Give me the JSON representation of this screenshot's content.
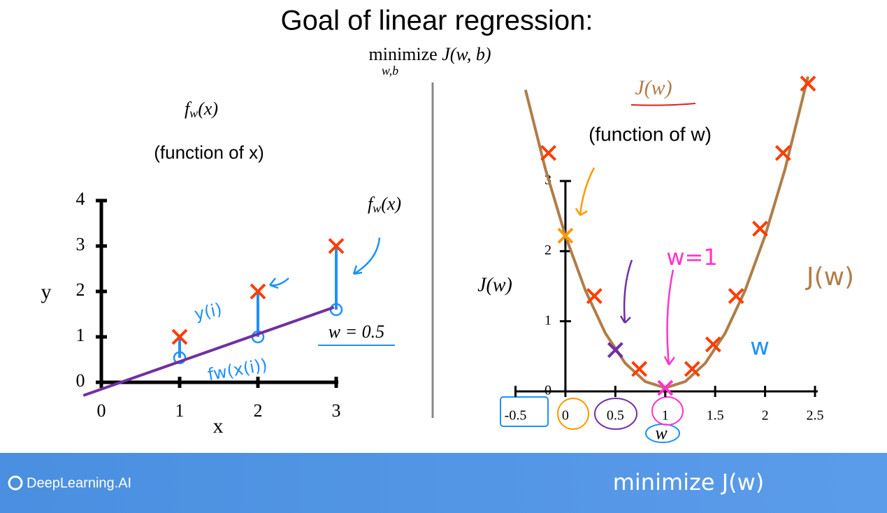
{
  "slide": {
    "title": "Goal of linear regression:",
    "objective": {
      "text": "minimize",
      "sub": "w,b",
      "func": "J(w, b)"
    }
  },
  "footer": {
    "brand": "DeepLearning.AI",
    "note": "minimize J(w)"
  },
  "chart_data": [
    {
      "type": "scatter",
      "title": {
        "f": "f",
        "sub": "w",
        "arg": "(x)"
      },
      "subtitle": "(function of x)",
      "x_label": "x",
      "y_label": "y",
      "xlim": [
        0,
        3
      ],
      "ylim": [
        0,
        4
      ],
      "xticks": [
        0,
        1,
        2,
        3
      ],
      "yticks": [
        0,
        1,
        2,
        3,
        4
      ],
      "series": [
        {
          "color": "#ff3d00",
          "marker": "x",
          "x": [
            1,
            2,
            3
          ],
          "values": [
            1,
            2,
            3
          ]
        },
        {
          "color": "#1e90ff",
          "marker": "o",
          "x": [
            1,
            2,
            3
          ],
          "values": [
            0.54,
            1.0,
            1.6
          ]
        },
        {
          "color": "#7030a0",
          "marker": "line",
          "x": [
            -0.23,
            2.97
          ],
          "values": [
            -0.29,
            1.65
          ]
        }
      ],
      "line_label": {
        "f": "f",
        "sub": "w",
        "arg": "(x)"
      },
      "param_label": "w = 0.5",
      "notes": [
        "y(i)",
        "fw(x(i))"
      ]
    },
    {
      "type": "line",
      "title": "J(w)",
      "subtitle": "(function of w)",
      "x_label": "w",
      "y_label": "J(w)",
      "xlim": [
        -0.5,
        2.5
      ],
      "ylim": [
        0,
        3
      ],
      "xticks": [
        -0.5,
        0,
        0.5,
        1,
        1.5,
        2,
        2.5
      ],
      "yticks": [
        0,
        1,
        2,
        3
      ],
      "series": [
        {
          "color": "#b07d48",
          "marker": "line",
          "x": [
            -0.4,
            -0.2,
            0,
            0.2,
            0.4,
            0.6,
            0.8,
            1,
            1.2,
            1.4,
            1.6,
            1.8,
            2,
            2.2,
            2.43
          ],
          "values": [
            4.3,
            3.17,
            2.22,
            1.44,
            0.83,
            0.4,
            0.14,
            0.05,
            0.14,
            0.4,
            0.83,
            1.44,
            2.22,
            3.17,
            4.49
          ]
        },
        {
          "color": "#ff3d00",
          "marker": "x",
          "x": [
            -0.17,
            0.29,
            0.74,
            1.27,
            1.48,
            1.71,
            1.95,
            2.18,
            2.43
          ],
          "values": [
            3.4,
            1.36,
            0.32,
            0.32,
            0.67,
            1.36,
            2.32,
            3.4,
            4.39
          ]
        },
        {
          "color": "#ff9900",
          "marker": "x",
          "x": [
            0
          ],
          "values": [
            2.22
          ]
        },
        {
          "color": "#7030a0",
          "marker": "x",
          "x": [
            0.5
          ],
          "values": [
            0.59
          ]
        },
        {
          "color": "#ff33cc",
          "marker": "x",
          "x": [
            1
          ],
          "values": [
            0.05
          ]
        }
      ],
      "notes": [
        "w=1",
        "J(w)",
        "w"
      ]
    }
  ]
}
